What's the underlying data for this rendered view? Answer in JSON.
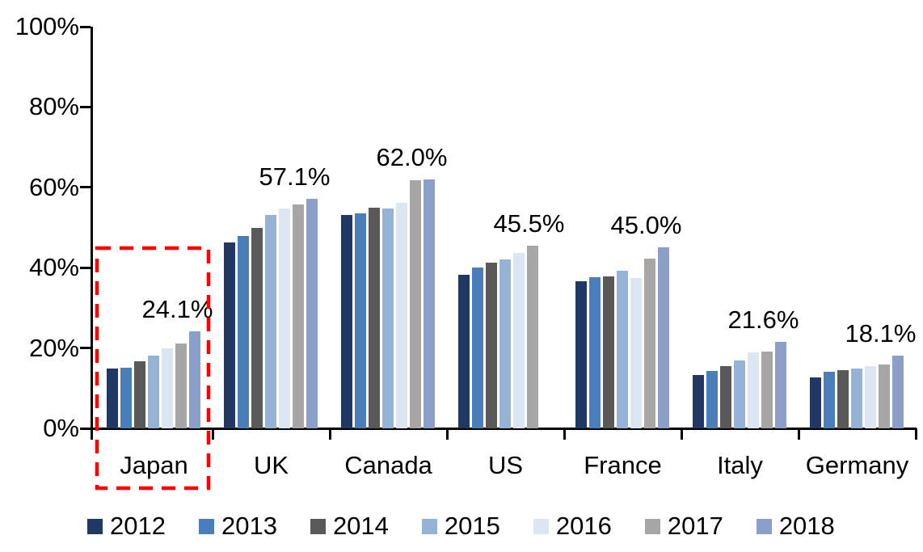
{
  "chart_data": {
    "type": "bar",
    "title": "",
    "xlabel": "",
    "ylabel": "",
    "ylim": [
      0,
      100
    ],
    "grid": false,
    "legend_position": "bottom",
    "y_tick_labels": [
      "0%",
      "20%",
      "40%",
      "60%",
      "80%",
      "100%"
    ],
    "y_tick_values": [
      0,
      20,
      40,
      60,
      80,
      100
    ],
    "categories": [
      "Japan",
      "UK",
      "Canada",
      "US",
      "France",
      "Italy",
      "Germany"
    ],
    "series": [
      {
        "name": "2012",
        "color": "#1F3864",
        "values": [
          14.8,
          46.3,
          53.1,
          38.2,
          36.6,
          13.3,
          12.6
        ]
      },
      {
        "name": "2013",
        "color": "#4A7EBB",
        "values": [
          15.0,
          47.8,
          53.5,
          40.1,
          37.7,
          14.2,
          14.1
        ]
      },
      {
        "name": "2014",
        "color": "#595959",
        "values": [
          16.8,
          49.9,
          55.0,
          41.2,
          37.8,
          15.4,
          14.4
        ]
      },
      {
        "name": "2015",
        "color": "#95B3D7",
        "values": [
          18.1,
          53.2,
          54.7,
          42.1,
          39.2,
          16.9,
          14.8
        ]
      },
      {
        "name": "2016",
        "color": "#DCE6F2",
        "values": [
          20.0,
          54.8,
          56.2,
          43.6,
          37.4,
          19.0,
          15.4
        ]
      },
      {
        "name": "2017",
        "color": "#A6A6A6",
        "values": [
          21.1,
          55.8,
          61.7,
          45.5,
          42.3,
          19.2,
          15.9
        ]
      },
      {
        "name": "2018",
        "color": "#8C9FC9",
        "values": [
          24.1,
          57.1,
          62.0,
          null,
          45.0,
          21.6,
          18.1
        ]
      }
    ],
    "data_labels": [
      "24.1%",
      "57.1%",
      "62.0%",
      "45.5%",
      "45.0%",
      "21.6%",
      "18.1%"
    ],
    "annotation": {
      "type": "dashed-box",
      "target_category": "Japan",
      "color": "#FF0000"
    }
  }
}
